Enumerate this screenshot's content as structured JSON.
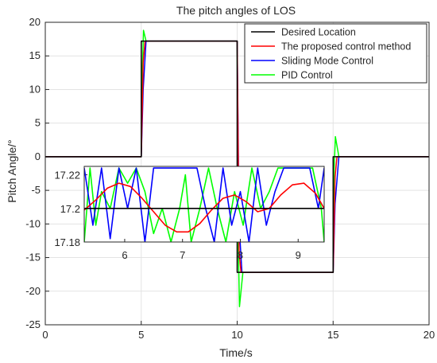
{
  "chart_data": [
    {
      "type": "line",
      "title": "The pitch angles of LOS",
      "xlabel": "Time/s",
      "ylabel": "Pitch Angle/°",
      "xlim": [
        0,
        20
      ],
      "ylim": [
        -25,
        20
      ],
      "xticks": [
        "0",
        "5",
        "10",
        "15",
        "20"
      ],
      "yticks": [
        "-25",
        "-20",
        "-15",
        "-10",
        "-5",
        "0",
        "5",
        "10",
        "15",
        "20"
      ],
      "grid": true,
      "legend_position": "top-right",
      "legend": [
        "Desired Location",
        "The proposed control method",
        "Sliding Mode Control",
        "PID Control"
      ],
      "colors": {
        "desired": "#000000",
        "proposed": "#ff0000",
        "smc": "#0000ff",
        "pid": "#00ff00"
      },
      "series": [
        {
          "name": "Desired Location",
          "x": [
            0,
            5,
            5,
            10,
            10,
            15,
            15,
            20
          ],
          "y": [
            0,
            0,
            17.2,
            17.2,
            -17.2,
            -17.2,
            0,
            0
          ]
        },
        {
          "name": "The proposed control method",
          "x": [
            0,
            5,
            5.1,
            5.2,
            10,
            10.1,
            10.2,
            15,
            15.1,
            15.2,
            20
          ],
          "y": [
            0,
            0,
            14,
            17.2,
            17.2,
            -14,
            -17.2,
            -17.2,
            -3,
            0,
            0
          ]
        },
        {
          "name": "Sliding Mode Control",
          "x": [
            0,
            5,
            5.1,
            5.25,
            10,
            10.1,
            10.25,
            15,
            15.1,
            15.3,
            20
          ],
          "y": [
            0,
            0,
            10,
            17.2,
            17.2,
            -10,
            -17.2,
            -17.2,
            -7,
            0,
            0
          ]
        },
        {
          "name": "PID Control",
          "x": [
            0,
            5,
            5.05,
            5.12,
            5.25,
            10,
            10.05,
            10.12,
            10.3,
            15,
            15.05,
            15.12,
            15.3,
            20
          ],
          "y": [
            0,
            0,
            12,
            18.8,
            17.2,
            17.2,
            -12,
            -22.3,
            -17.2,
            -17.2,
            -2,
            3,
            0,
            0
          ]
        }
      ]
    },
    {
      "type": "line",
      "inset": true,
      "xlim": [
        5.3,
        9.45
      ],
      "ylim": [
        17.18,
        17.225
      ],
      "xticks": [
        "6",
        "7",
        "8",
        "9"
      ],
      "yticks": [
        "17.18",
        "17.2",
        "17.22"
      ],
      "series": [
        {
          "name": "Desired Location",
          "x": [
            5.3,
            9.45
          ],
          "y": [
            17.2,
            17.2
          ]
        },
        {
          "name": "The proposed control method",
          "x": [
            5.3,
            5.5,
            5.7,
            5.9,
            6.1,
            6.3,
            6.5,
            6.7,
            6.9,
            7.1,
            7.3,
            7.5,
            7.7,
            7.9,
            8.1,
            8.3,
            8.5,
            8.7,
            8.9,
            9.1,
            9.3,
            9.45
          ],
          "y": [
            17.199,
            17.205,
            17.212,
            17.215,
            17.213,
            17.206,
            17.198,
            17.19,
            17.186,
            17.186,
            17.191,
            17.199,
            17.206,
            17.208,
            17.204,
            17.198,
            17.2,
            17.208,
            17.214,
            17.215,
            17.209,
            17.2
          ]
        },
        {
          "name": "Sliding Mode Control",
          "x": [
            5.3,
            5.45,
            5.6,
            5.75,
            5.9,
            6.05,
            6.2,
            6.35,
            6.5,
            6.65,
            6.8,
            6.95,
            7.1,
            7.25,
            7.4,
            7.55,
            7.7,
            7.85,
            8.0,
            8.15,
            8.3,
            8.45,
            8.6,
            8.75,
            8.9,
            9.05,
            9.2,
            9.35,
            9.45
          ],
          "y": [
            17.224,
            17.19,
            17.224,
            17.182,
            17.224,
            17.2,
            17.224,
            17.18,
            17.224,
            17.224,
            17.224,
            17.224,
            17.224,
            17.224,
            17.2,
            17.18,
            17.224,
            17.19,
            17.21,
            17.18,
            17.224,
            17.19,
            17.21,
            17.224,
            17.224,
            17.224,
            17.224,
            17.2,
            17.224
          ]
        },
        {
          "name": "PID Control",
          "x": [
            5.3,
            5.4,
            5.5,
            5.6,
            5.75,
            5.9,
            6.05,
            6.2,
            6.35,
            6.5,
            6.65,
            6.8,
            6.95,
            7.05,
            7.15,
            7.3,
            7.45,
            7.6,
            7.75,
            7.9,
            8.05,
            8.2,
            8.35,
            8.5,
            8.65,
            8.8,
            8.95,
            9.1,
            9.25,
            9.4,
            9.45
          ],
          "y": [
            17.18,
            17.224,
            17.19,
            17.21,
            17.2,
            17.224,
            17.215,
            17.224,
            17.21,
            17.185,
            17.2,
            17.18,
            17.2,
            17.22,
            17.18,
            17.2,
            17.224,
            17.2,
            17.18,
            17.21,
            17.19,
            17.224,
            17.2,
            17.21,
            17.224,
            17.224,
            17.224,
            17.224,
            17.224,
            17.2,
            17.18
          ]
        }
      ]
    }
  ]
}
